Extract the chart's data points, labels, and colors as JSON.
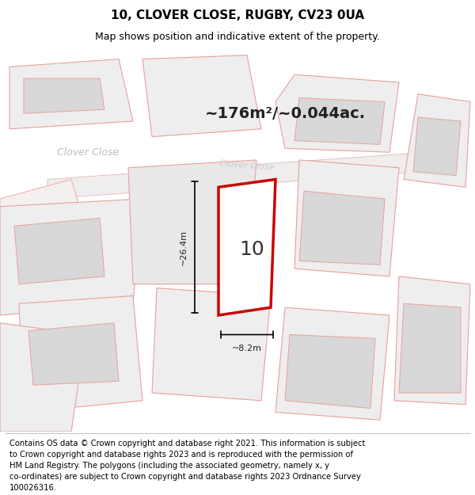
{
  "title": "10, CLOVER CLOSE, RUGBY, CV23 0UA",
  "subtitle": "Map shows position and indicative extent of the property.",
  "footer_lines": [
    "Contains OS data © Crown copyright and database right 2021. This information is subject",
    "to Crown copyright and database rights 2023 and is reproduced with the permission of",
    "HM Land Registry. The polygons (including the associated geometry, namely x, y",
    "co-ordinates) are subject to Crown copyright and database rights 2023 Ordnance Survey",
    "100026316."
  ],
  "area_text": "~176m²/~0.044ac.",
  "label_number": "10",
  "dim_height": "~26.4m",
  "dim_width": "~8.2m",
  "street_label1": "Clover Close",
  "street_label2": "Clover Close",
  "map_bg": "#f2f2f2",
  "plot_edge_color": "#cc0000",
  "building_fill": "#d8d8d8",
  "outline_color": "#e8a0a0",
  "title_fontsize": 11,
  "subtitle_fontsize": 9,
  "footer_fontsize": 7.2
}
